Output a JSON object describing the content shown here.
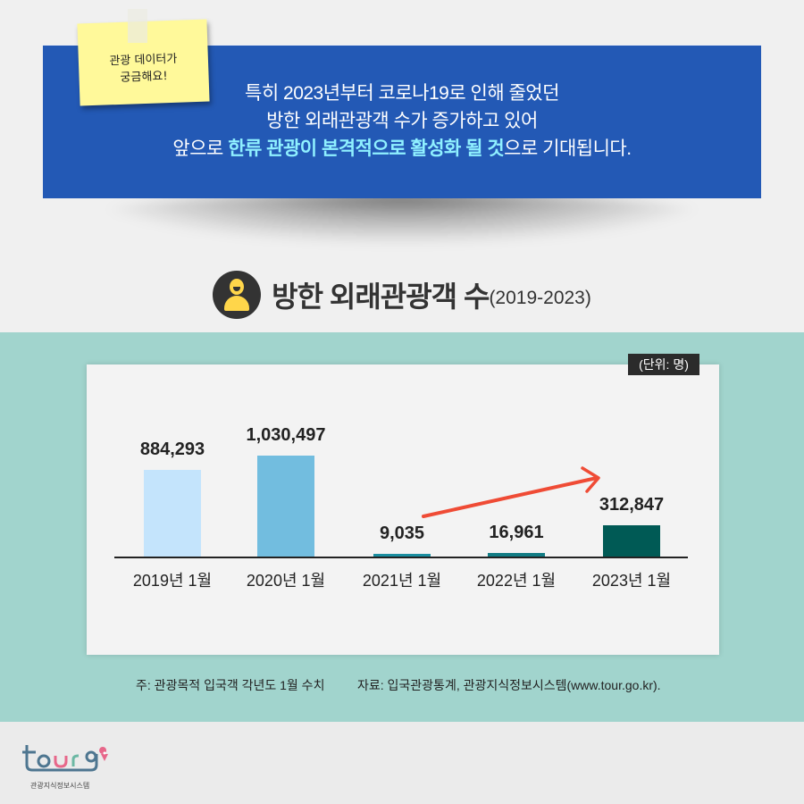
{
  "sticky_note": {
    "line1": "관광 데이터가",
    "line2": "궁금해요!"
  },
  "banner": {
    "line1": "특히 2023년부터 코로나19로 인해 줄었던",
    "line2": "방한 외래관광객 수가 증가하고 있어",
    "line3_prefix": "앞으로 ",
    "line3_highlight": "한류 관광이 본격적으로 활성화 될 것",
    "line3_suffix": "으로 기대됩니다."
  },
  "title": {
    "main": "방한 외래관광객 수",
    "sub": "(2019-2023)",
    "icon": "person-icon"
  },
  "unit_badge": "(단위: 명)",
  "colors": {
    "banner": "#2359b5",
    "highlight": "#8ff0ff",
    "teal_bg": "#a1d4cd",
    "arrow": "#ef4b35"
  },
  "chart_data": {
    "type": "bar",
    "title": "방한 외래관광객 수(2019-2023)",
    "unit": "명",
    "categories": [
      "2019년 1월",
      "2020년 1월",
      "2021년 1월",
      "2022년 1월",
      "2023년 1월"
    ],
    "values": [
      884293,
      1030497,
      9035,
      16961,
      312847
    ],
    "value_labels": [
      "884,293",
      "1,030,497",
      "9,035",
      "16,961",
      "312,847"
    ],
    "bar_colors": [
      "#c4e4fc",
      "#72bddf",
      "#1a8ea0",
      "#127c84",
      "#005a55"
    ],
    "xlabel": "",
    "ylabel": "",
    "grid": false,
    "legend": "none",
    "annotations": [
      "upward trend arrow from 2021 to 2023"
    ]
  },
  "notes": {
    "left": "주: 관광목적 입국객 각년도 1월 수치",
    "right": "자료: 입국관광통계, 관광지식정보시스템(www.tour.go.kr)."
  },
  "logo": {
    "text": "tour",
    "subtitle": "관광지식정보시스템"
  }
}
